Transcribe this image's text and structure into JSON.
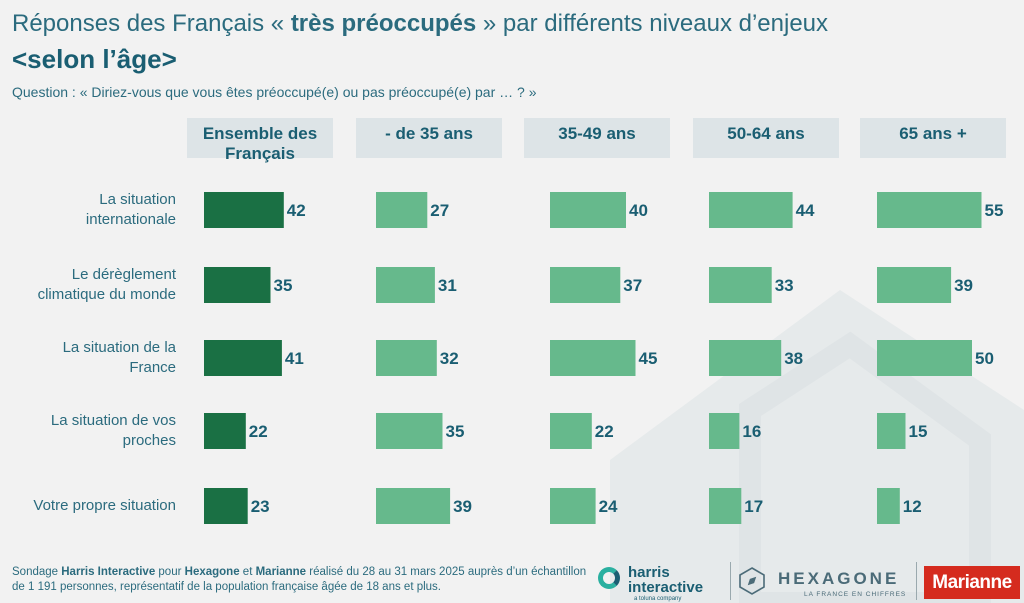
{
  "title": {
    "prefix": "Réponses des Français « ",
    "bold": "très préoccupés",
    "suffix": " » par différents niveaux d’enjeux",
    "line2": "<selon l’âge>"
  },
  "question": "Question : « Diriez-vous que vous êtes préoccupé(e) ou pas préoccupé(e) par … ? »",
  "colors": {
    "dark_green": "#1a7044",
    "light_green": "#66b98c",
    "header_bg": "#dde4e7",
    "text": "#1a5e72"
  },
  "chart_data": {
    "type": "bar",
    "orientation": "horizontal",
    "categories": [
      "La situation internationale",
      "Le dérèglement climatique du monde",
      "La situation de la France",
      "La situation de vos proches",
      "Votre propre situation"
    ],
    "category_lines": [
      [
        "La situation",
        "internationale"
      ],
      [
        "Le dérèglement",
        "climatique du monde"
      ],
      [
        "La situation de la",
        "France"
      ],
      [
        "La situation de vos",
        "proches"
      ],
      [
        "Votre propre situation"
      ]
    ],
    "series": [
      {
        "name": "Ensemble des Français",
        "header_lines": [
          "Ensemble des",
          "Français"
        ],
        "values": [
          42,
          35,
          41,
          22,
          23
        ]
      },
      {
        "name": "- de 35 ans",
        "header_lines": [
          "- de 35 ans"
        ],
        "values": [
          27,
          31,
          32,
          35,
          39
        ]
      },
      {
        "name": "35-49 ans",
        "header_lines": [
          "35-49 ans"
        ],
        "values": [
          40,
          37,
          45,
          22,
          24
        ]
      },
      {
        "name": "50-64 ans",
        "header_lines": [
          "50-64 ans"
        ],
        "values": [
          44,
          33,
          38,
          16,
          17
        ]
      },
      {
        "name": "65 ans +",
        "header_lines": [
          "65 ans +"
        ],
        "values": [
          55,
          39,
          50,
          15,
          12
        ]
      }
    ]
  },
  "footer": {
    "p1": "Sondage ",
    "b1": "Harris Interactive",
    "p2": " pour ",
    "b2": "Hexagone",
    "p3": " et ",
    "b3": "Marianne",
    "p4": " réalisé du 28 au 31 mars 2025 auprès d’un échantillon de 1 191 personnes, représentatif de la population française âgée de 18 ans et plus."
  },
  "logos": {
    "harris_line1": "harris",
    "harris_line2": "interactive",
    "harris_sub": "a toluna company",
    "hexagone": "HEXAGONE",
    "hexagone_sub": "LA FRANCE EN CHIFFRES",
    "marianne": "Marianne"
  }
}
